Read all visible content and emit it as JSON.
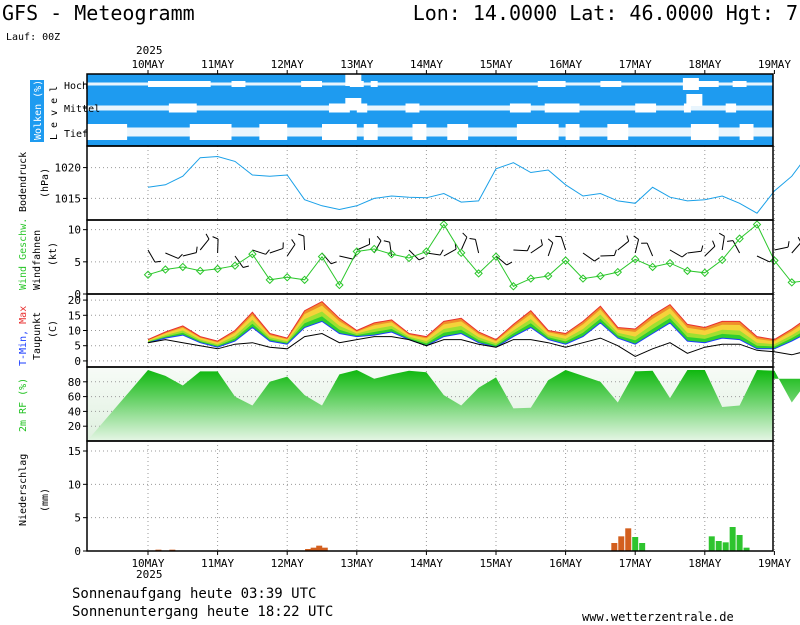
{
  "header": {
    "title": "GFS - Meteogramm",
    "coords": "Lon: 14.0000 Lat: 46.0000 Hgt: 7",
    "run": "Lauf: 00Z",
    "year": "2025"
  },
  "footer": {
    "sunrise": "Sonnenaufgang heute 03:39 UTC",
    "sunset": "Sonnenuntergang heute 18:22 UTC",
    "website": "www.wetterzentrale.de",
    "year": "2025"
  },
  "colors": {
    "cloud_bg": "#1e9bf0",
    "pressure": "#1aa0e8",
    "wind": "#2bc72b",
    "tmax": "#e83030",
    "tmin": "#1a3cff",
    "humidity": "#1fc21f",
    "precip_rain": "#d35f1e",
    "precip_conv": "#2ec42e"
  },
  "chart_data": {
    "type": "meteogram",
    "days": [
      "10MAY",
      "11MAY",
      "12MAY",
      "13MAY",
      "14MAY",
      "15MAY",
      "16MAY",
      "17MAY",
      "18MAY",
      "19MAY"
    ],
    "panels": {
      "clouds": {
        "ylabel": "Wolken (%)",
        "ylabel2": "L e v e l",
        "levels": [
          "Hoch",
          "Mittel",
          "Tief"
        ]
      },
      "pressure": {
        "ylabel": "Bodendruck",
        "unit": "(hPa)",
        "ylim": [
          1011.5,
          1023.5
        ],
        "ticks": [
          1015,
          1020
        ],
        "x": [
          0,
          0.25,
          0.5,
          0.75,
          1,
          1.25,
          1.5,
          1.75,
          2,
          2.25,
          2.5,
          2.75,
          3,
          3.25,
          3.5,
          3.75,
          4,
          4.25,
          4.5,
          4.75,
          5,
          5.25,
          5.5,
          5.75,
          6,
          6.25,
          6.5,
          6.75,
          7,
          7.25,
          7.5,
          7.75,
          8,
          8.25,
          8.5,
          8.75,
          9,
          9.25,
          9.5
        ],
        "values": [
          1016.8,
          1017.2,
          1018.6,
          1021.6,
          1021.8,
          1021,
          1018.8,
          1018.6,
          1018.8,
          1014.8,
          1013.8,
          1013.2,
          1013.8,
          1015,
          1015.4,
          1015.2,
          1015.1,
          1015.8,
          1014.4,
          1014.6,
          1019.8,
          1020.8,
          1019.2,
          1019.6,
          1017.2,
          1015.4,
          1015.8,
          1014.6,
          1014.2,
          1016.8,
          1015.2,
          1014.6,
          1014.8,
          1015.4,
          1014.2,
          1012.6,
          1016.2,
          1018.6,
          1022.4
        ]
      },
      "wind": {
        "ylabel": "Wind Geschw.",
        "ylabel2": "Windfahnen",
        "unit": "(kt)",
        "ylim": [
          0,
          11.5
        ],
        "ticks": [
          0,
          5,
          10
        ],
        "x": [
          0,
          0.25,
          0.5,
          0.75,
          1,
          1.25,
          1.5,
          1.75,
          2,
          2.25,
          2.5,
          2.75,
          3,
          3.25,
          3.5,
          3.75,
          4,
          4.25,
          4.5,
          4.75,
          5,
          5.25,
          5.5,
          5.75,
          6,
          6.25,
          6.5,
          6.75,
          7,
          7.25,
          7.5,
          7.75,
          8,
          8.25,
          8.5,
          8.75,
          9,
          9.25,
          9.5
        ],
        "values": [
          3,
          3.8,
          4.2,
          3.6,
          3.9,
          4.4,
          6.2,
          2.2,
          2.6,
          2.2,
          5.8,
          1.4,
          6.6,
          7,
          6.2,
          5.6,
          6.6,
          10.8,
          6.4,
          3.2,
          5.8,
          1.2,
          2.4,
          2.8,
          5.2,
          2.4,
          2.8,
          3.4,
          5.4,
          4.2,
          4.8,
          3.6,
          3.3,
          5.3,
          8.6,
          10.8,
          5.2,
          1.8,
          2.1
        ]
      },
      "temperature": {
        "ylabel": "T-Min, Max",
        "ylabel2": "Taupunkt",
        "unit": "(C)",
        "ylim": [
          -2,
          22
        ],
        "ticks": [
          0,
          5,
          10,
          15,
          20
        ],
        "x": [
          0,
          0.25,
          0.5,
          0.75,
          1,
          1.25,
          1.5,
          1.75,
          2,
          2.25,
          2.5,
          2.75,
          3,
          3.25,
          3.5,
          3.75,
          4,
          4.25,
          4.5,
          4.75,
          5,
          5.25,
          5.5,
          5.75,
          6,
          6.25,
          6.5,
          6.75,
          7,
          7.25,
          7.5,
          7.75,
          8,
          8.25,
          8.5,
          8.75,
          9,
          9.25,
          9.5
        ],
        "tmax": [
          7,
          9.5,
          11.5,
          8,
          6.5,
          10,
          16,
          9,
          7.5,
          16.5,
          19.5,
          14,
          10,
          12.5,
          13.5,
          9,
          8,
          13,
          14,
          9.5,
          7,
          12,
          16.5,
          10,
          9,
          13,
          18,
          11,
          10.5,
          15,
          18.5,
          12,
          11,
          13,
          13,
          8,
          7,
          10.5,
          14.5
        ],
        "tmin": [
          6,
          7.5,
          8.5,
          6,
          4.5,
          6.5,
          11,
          6.5,
          5.5,
          11,
          13,
          9,
          8,
          8.5,
          9.5,
          7,
          5,
          8,
          9,
          6,
          4.5,
          8,
          11,
          7,
          5.5,
          8,
          12.5,
          7.5,
          5.5,
          9,
          12.5,
          6.5,
          6,
          7.5,
          7,
          4,
          4,
          6.5,
          9.5
        ],
        "dewpoint": [
          6,
          7,
          6,
          5,
          4,
          5.5,
          6,
          4.5,
          4,
          8,
          9,
          6,
          7,
          8,
          8,
          7,
          5,
          7,
          7,
          5.5,
          4.5,
          7,
          7,
          6,
          4.5,
          6,
          7.5,
          5,
          1.5,
          4,
          6,
          2.5,
          4.5,
          5.5,
          5.5,
          3.5,
          3,
          2,
          3.5
        ]
      },
      "humidity": {
        "ylabel": "2m RF (%)",
        "ylim": [
          0,
          100
        ],
        "ticks": [
          20,
          40,
          60,
          80
        ],
        "x": [
          0,
          0.25,
          0.5,
          0.75,
          1,
          1.25,
          1.5,
          1.75,
          2,
          2.25,
          2.5,
          2.75,
          3,
          3.25,
          3.5,
          3.75,
          4,
          4.25,
          4.5,
          4.75,
          5,
          5.25,
          5.5,
          5.75,
          6,
          6.25,
          6.5,
          6.75,
          7,
          7.25,
          7.5,
          7.75,
          8,
          8.25,
          8.5,
          8.75,
          9,
          9.25,
          9.5
        ],
        "values": [
          96,
          88,
          75,
          94,
          94,
          60,
          48,
          80,
          87,
          62,
          48,
          90,
          96,
          84,
          90,
          95,
          93,
          62,
          48,
          72,
          86,
          44,
          45,
          82,
          96,
          88,
          80,
          52,
          94,
          95,
          58,
          96,
          96,
          46,
          48,
          96,
          95,
          52,
          84
        ]
      },
      "precip": {
        "ylabel": "Niederschlag",
        "unit": "(mm)",
        "ylim": [
          0,
          16.5
        ],
        "ticks": [
          0,
          5,
          10,
          15
        ],
        "bars": [
          {
            "x": 0.15,
            "v": 0.2,
            "t": "rain"
          },
          {
            "x": 0.35,
            "v": 0.2,
            "t": "rain"
          },
          {
            "x": 2.3,
            "v": 0.3,
            "t": "rain"
          },
          {
            "x": 2.38,
            "v": 0.5,
            "t": "rain"
          },
          {
            "x": 2.46,
            "v": 0.8,
            "t": "rain"
          },
          {
            "x": 2.54,
            "v": 0.5,
            "t": "rain"
          },
          {
            "x": 6.7,
            "v": 1.2,
            "t": "rain"
          },
          {
            "x": 6.8,
            "v": 2.2,
            "t": "rain"
          },
          {
            "x": 6.9,
            "v": 3.4,
            "t": "rain"
          },
          {
            "x": 7.0,
            "v": 2.1,
            "t": "conv"
          },
          {
            "x": 7.1,
            "v": 1.2,
            "t": "conv"
          },
          {
            "x": 8.1,
            "v": 2.2,
            "t": "conv"
          },
          {
            "x": 8.2,
            "v": 1.5,
            "t": "conv"
          },
          {
            "x": 8.3,
            "v": 1.3,
            "t": "conv"
          },
          {
            "x": 8.4,
            "v": 3.6,
            "t": "conv"
          },
          {
            "x": 8.5,
            "v": 2.4,
            "t": "conv"
          },
          {
            "x": 8.6,
            "v": 0.5,
            "t": "conv"
          }
        ]
      }
    }
  }
}
